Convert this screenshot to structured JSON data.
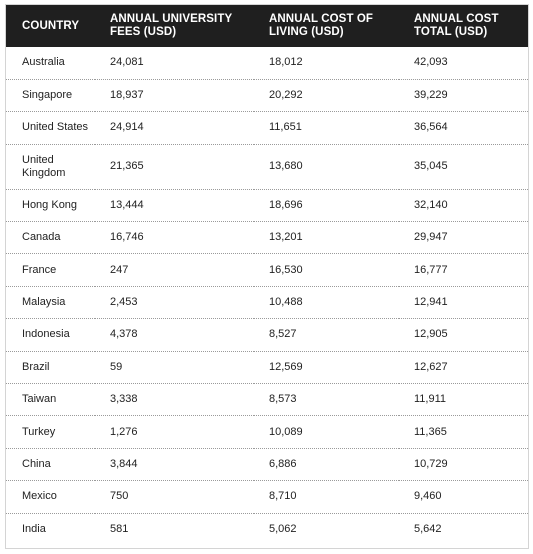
{
  "table": {
    "headers": [
      "COUNTRY",
      "ANNUAL UNIVERSITY FEES (USD)",
      "ANNUAL COST OF LIVING (USD)",
      "ANNUAL COST TOTAL (USD)"
    ],
    "rows": [
      [
        "Australia",
        "24,081",
        "18,012",
        "42,093"
      ],
      [
        "Singapore",
        "18,937",
        "20,292",
        "39,229"
      ],
      [
        "United States",
        "24,914",
        "11,651",
        "36,564"
      ],
      [
        "United Kingdom",
        "21,365",
        "13,680",
        "35,045"
      ],
      [
        "Hong Kong",
        "13,444",
        "18,696",
        "32,140"
      ],
      [
        "Canada",
        "16,746",
        "13,201",
        "29,947"
      ],
      [
        "France",
        "247",
        "16,530",
        "16,777"
      ],
      [
        "Malaysia",
        "2,453",
        "10,488",
        "12,941"
      ],
      [
        "Indonesia",
        "4,378",
        "8,527",
        "12,905"
      ],
      [
        "Brazil",
        "59",
        "12,569",
        "12,627"
      ],
      [
        "Taiwan",
        "3,338",
        "8,573",
        "11,911"
      ],
      [
        "Turkey",
        "1,276",
        "10,089",
        "11,365"
      ],
      [
        "China",
        "3,844",
        "6,886",
        "10,729"
      ],
      [
        "Mexico",
        "750",
        "8,710",
        "9,460"
      ],
      [
        "India",
        "581",
        "5,062",
        "5,642"
      ]
    ]
  },
  "colors": {
    "header_background": "#1f1f1f",
    "header_text": "#ffffff",
    "row_divider": "#9a9a9a",
    "body_text": "#222222"
  }
}
